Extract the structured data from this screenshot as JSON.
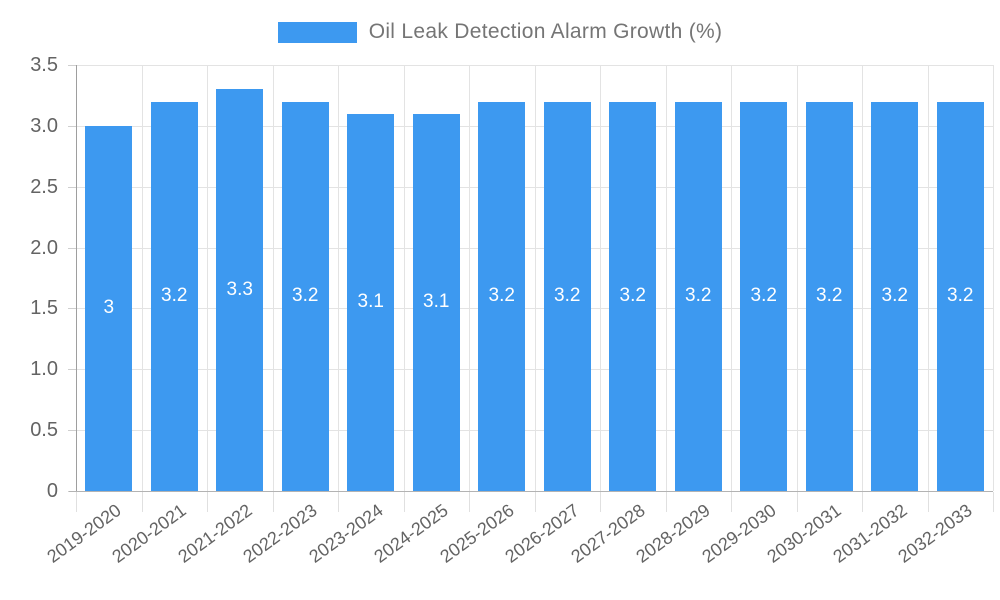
{
  "legend": {
    "position": "top",
    "swatch_color": "#3d99f0"
  },
  "chart_data": {
    "type": "bar",
    "title": "Oil Leak Detection Alarm Growth (%)",
    "xlabel": "",
    "ylabel": "",
    "categories": [
      "2019-2020",
      "2020-2021",
      "2021-2022",
      "2022-2023",
      "2023-2024",
      "2024-2025",
      "2025-2026",
      "2026-2027",
      "2027-2028",
      "2028-2029",
      "2029-2030",
      "2030-2031",
      "2031-2032",
      "2032-2033"
    ],
    "values": [
      3,
      3.2,
      3.3,
      3.2,
      3.1,
      3.1,
      3.2,
      3.2,
      3.2,
      3.2,
      3.2,
      3.2,
      3.2,
      3.2
    ],
    "value_labels": [
      "3",
      "3.2",
      "3.3",
      "3.2",
      "3.1",
      "3.1",
      "3.2",
      "3.2",
      "3.2",
      "3.2",
      "3.2",
      "3.2",
      "3.2",
      "3.2"
    ],
    "ylim": [
      0,
      3.5
    ],
    "yticks": [
      0,
      0.5,
      1,
      1.5,
      2,
      2.5,
      3,
      3.5
    ],
    "ytick_labels": [
      "0",
      "0.5",
      "1.0",
      "1.5",
      "2.0",
      "2.5",
      "3.0",
      "3.5"
    ],
    "grid": true,
    "legend_position": "top",
    "bar_color": "#3d99f0",
    "value_label_color": "#ffffff",
    "axis_text_color": "#636363"
  }
}
